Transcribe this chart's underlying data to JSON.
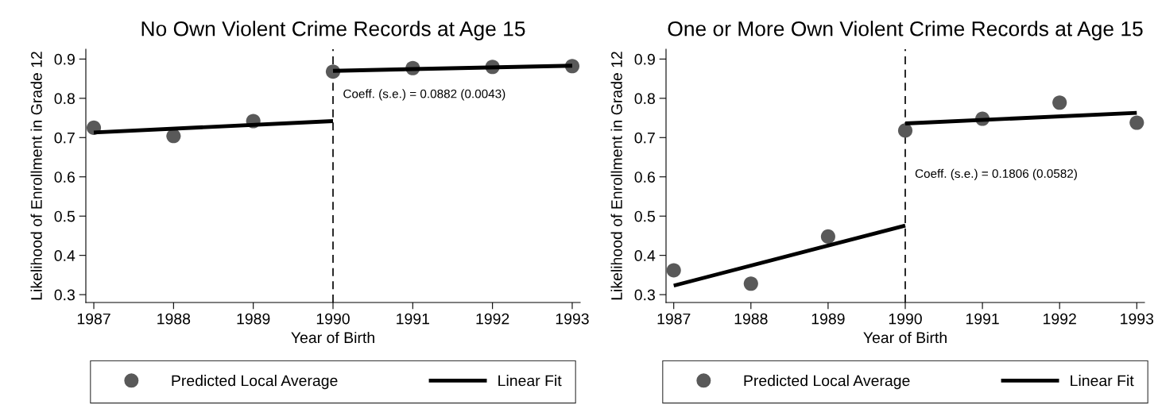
{
  "chart_data": [
    {
      "type": "scatter",
      "title": "No Own Violent Crime Records at Age 15",
      "xlabel": "Year of Birth",
      "ylabel": "Likelihood of Enrollment in Grade 12",
      "xlim": [
        1986.9,
        1993.1
      ],
      "xticks": [
        1987,
        1988,
        1989,
        1990,
        1991,
        1992,
        1993
      ],
      "ylim": [
        0.28,
        0.925
      ],
      "yticks": [
        0.3,
        0.4,
        0.5,
        0.6,
        0.7,
        0.8,
        0.9
      ],
      "grid": false,
      "legend": "bottom",
      "marker": "circle",
      "ref_lines": [
        {
          "axis": "x",
          "value": 1990,
          "color": "#000000",
          "line_style": "dashed"
        }
      ],
      "annotations": [
        "Coeff. (s.e.) = 0.0882 (0.0043)"
      ],
      "series": [
        {
          "name": "Predicted Local Average",
          "color": "#595959",
          "x": [
            1987,
            1988,
            1989,
            1990,
            1991,
            1992,
            1993
          ],
          "values": [
            0.725,
            0.704,
            0.742,
            0.868,
            0.877,
            0.88,
            0.882
          ]
        },
        {
          "name": "Linear Fit",
          "type": "line",
          "marker": "none",
          "line_style": "solid",
          "color": "#000000",
          "x": [
            1987,
            1990
          ],
          "values": [
            0.713,
            0.742
          ]
        },
        {
          "type": "line",
          "marker": "none",
          "line_style": "solid",
          "color": "#000000",
          "x": [
            1990,
            1993
          ],
          "values": [
            0.87,
            0.883
          ]
        }
      ]
    },
    {
      "type": "scatter",
      "title": "One or More Own Violent Crime Records at Age 15",
      "xlabel": "Year of Birth",
      "ylabel": "Likelihood of Enrollment in Grade 12",
      "xlim": [
        1986.9,
        1993.1
      ],
      "xticks": [
        1987,
        1988,
        1989,
        1990,
        1991,
        1992,
        1993
      ],
      "ylim": [
        0.28,
        0.925
      ],
      "yticks": [
        0.3,
        0.4,
        0.5,
        0.6,
        0.7,
        0.8,
        0.9
      ],
      "grid": false,
      "legend": "bottom",
      "marker": "circle",
      "ref_lines": [
        {
          "axis": "x",
          "value": 1990,
          "color": "#000000",
          "line_style": "dashed"
        }
      ],
      "annotations": [
        "Coeff. (s.e.) = 0.1806 (0.0582)"
      ],
      "series": [
        {
          "name": "Predicted Local Average",
          "color": "#595959",
          "x": [
            1987,
            1988,
            1989,
            1990,
            1991,
            1992,
            1993
          ],
          "values": [
            0.362,
            0.328,
            0.448,
            0.718,
            0.748,
            0.789,
            0.738
          ]
        },
        {
          "name": "Linear Fit",
          "type": "line",
          "marker": "none",
          "line_style": "solid",
          "color": "#000000",
          "x": [
            1987,
            1990
          ],
          "values": [
            0.323,
            0.476
          ]
        },
        {
          "type": "line",
          "marker": "none",
          "line_style": "solid",
          "color": "#000000",
          "x": [
            1990,
            1993
          ],
          "values": [
            0.736,
            0.763
          ]
        }
      ]
    }
  ]
}
